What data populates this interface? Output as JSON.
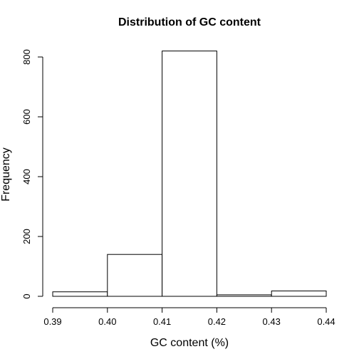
{
  "chart_data": {
    "type": "bar",
    "title": "Distribution of GC content",
    "xlabel": "GC content (%)",
    "ylabel": "Frequency",
    "bins": [
      {
        "start": 0.39,
        "end": 0.4,
        "count": 15
      },
      {
        "start": 0.4,
        "end": 0.41,
        "count": 140
      },
      {
        "start": 0.41,
        "end": 0.42,
        "count": 820
      },
      {
        "start": 0.42,
        "end": 0.43,
        "count": 5
      },
      {
        "start": 0.43,
        "end": 0.44,
        "count": 18
      }
    ],
    "xlim": [
      0.39,
      0.44
    ],
    "ylim": [
      0,
      800
    ],
    "x_ticks": [
      "0.39",
      "0.40",
      "0.41",
      "0.42",
      "0.43",
      "0.44"
    ],
    "y_ticks": [
      "0",
      "200",
      "400",
      "600",
      "800"
    ],
    "grid": false,
    "legend": "none",
    "bar_fill": "#ffffff",
    "bar_stroke": "#000000"
  }
}
